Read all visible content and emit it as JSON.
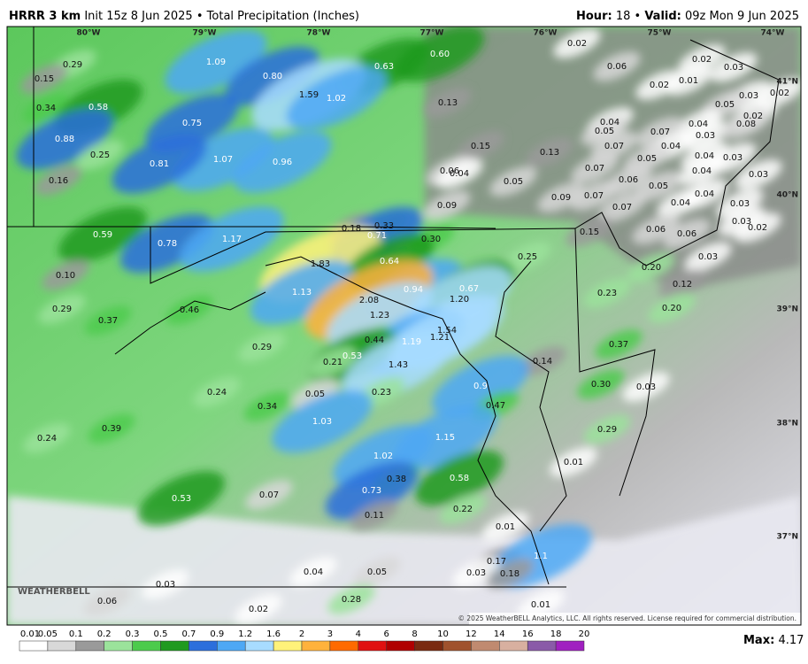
{
  "header": {
    "model": "HRRR 3 km",
    "init": "Init 15z 8 Jun 2025",
    "separator": "•",
    "product": "Total Precipitation (Inches)",
    "hour_label": "Hour:",
    "hour": "18",
    "valid_label": "Valid:",
    "valid": "09z Mon 9 Jun 2025"
  },
  "map": {
    "longitudes": [
      "80°W",
      "79°W",
      "78°W",
      "77°W",
      "76°W",
      "75°W",
      "74°W"
    ],
    "latitudes": [
      "41°N",
      "40°N",
      "39°N",
      "38°N",
      "37°N"
    ],
    "values": [
      "0.02",
      "0.29",
      "1.09",
      "0.80",
      "0.63",
      "0.60",
      "0.06",
      "0.02",
      "0.03",
      "0.15",
      "0.02",
      "0.01",
      "0.03",
      "0.02",
      "0.34",
      "0.58",
      "1.59",
      "1.02",
      "0.13",
      "0.05",
      "0.04",
      "0.04",
      "0.02",
      "0.75",
      "0.05",
      "0.07",
      "0.03",
      "0.08",
      "0.88",
      "0.15",
      "0.13",
      "0.07",
      "0.04",
      "0.25",
      "1.07",
      "0.96",
      "0.81",
      "0.05",
      "0.04",
      "0.03",
      "0.16",
      "0.06",
      "0.04",
      "0.05",
      "0.07",
      "0.06",
      "0.05",
      "0.04",
      "0.03",
      "0.07",
      "0.09",
      "0.09",
      "0.07",
      "0.04",
      "0.04",
      "0.03",
      "0.18",
      "0.33",
      "0.03",
      "0.02",
      "0.59",
      "0.78",
      "1.17",
      "0.71",
      "0.30",
      "0.15",
      "0.06",
      "0.06",
      "0.25",
      "1.83",
      "0.64",
      "0.03",
      "0.10",
      "0.20",
      "0.12",
      "1.13",
      "0.94",
      "0.67",
      "0.23",
      "2.08",
      "1.20",
      "0.29",
      "0.46",
      "0.37",
      "1.23",
      "0.20",
      "1.54",
      "0.44",
      "1.19",
      "1.21",
      "0.37",
      "0.29",
      "0.53",
      "0.21",
      "1.43",
      "0.14",
      "0.30",
      "0.03",
      "0.24",
      "0.05",
      "0.23",
      "0.9",
      "0.34",
      "0.47",
      "1.03",
      "0.39",
      "0.24",
      "0.29",
      "1.15",
      "1.02",
      "0.01",
      "0.38",
      "0.58",
      "0.73",
      "0.53",
      "0.07",
      "0.11",
      "0.22",
      "0.01",
      "0.17",
      "1.1",
      "0.04",
      "0.05",
      "0.03",
      "0.18",
      "0.03",
      "0.06",
      "0.28",
      "0.02",
      "0.01"
    ]
  },
  "logo": "WEATHERBELL",
  "copyright": "© 2025 WeatherBELL Analytics, LLC. All rights reserved. License required for commercial distribution.",
  "legend": {
    "labels": [
      "0.01",
      "0.05",
      "0.1",
      "0.2",
      "0.3",
      "0.5",
      "0.7",
      "0.9",
      "1.2",
      "1.6",
      "2",
      "3",
      "4",
      "6",
      "8",
      "10",
      "12",
      "14",
      "16",
      "18",
      "20"
    ]
  },
  "max": {
    "label": "Max:",
    "value": "4.17"
  }
}
